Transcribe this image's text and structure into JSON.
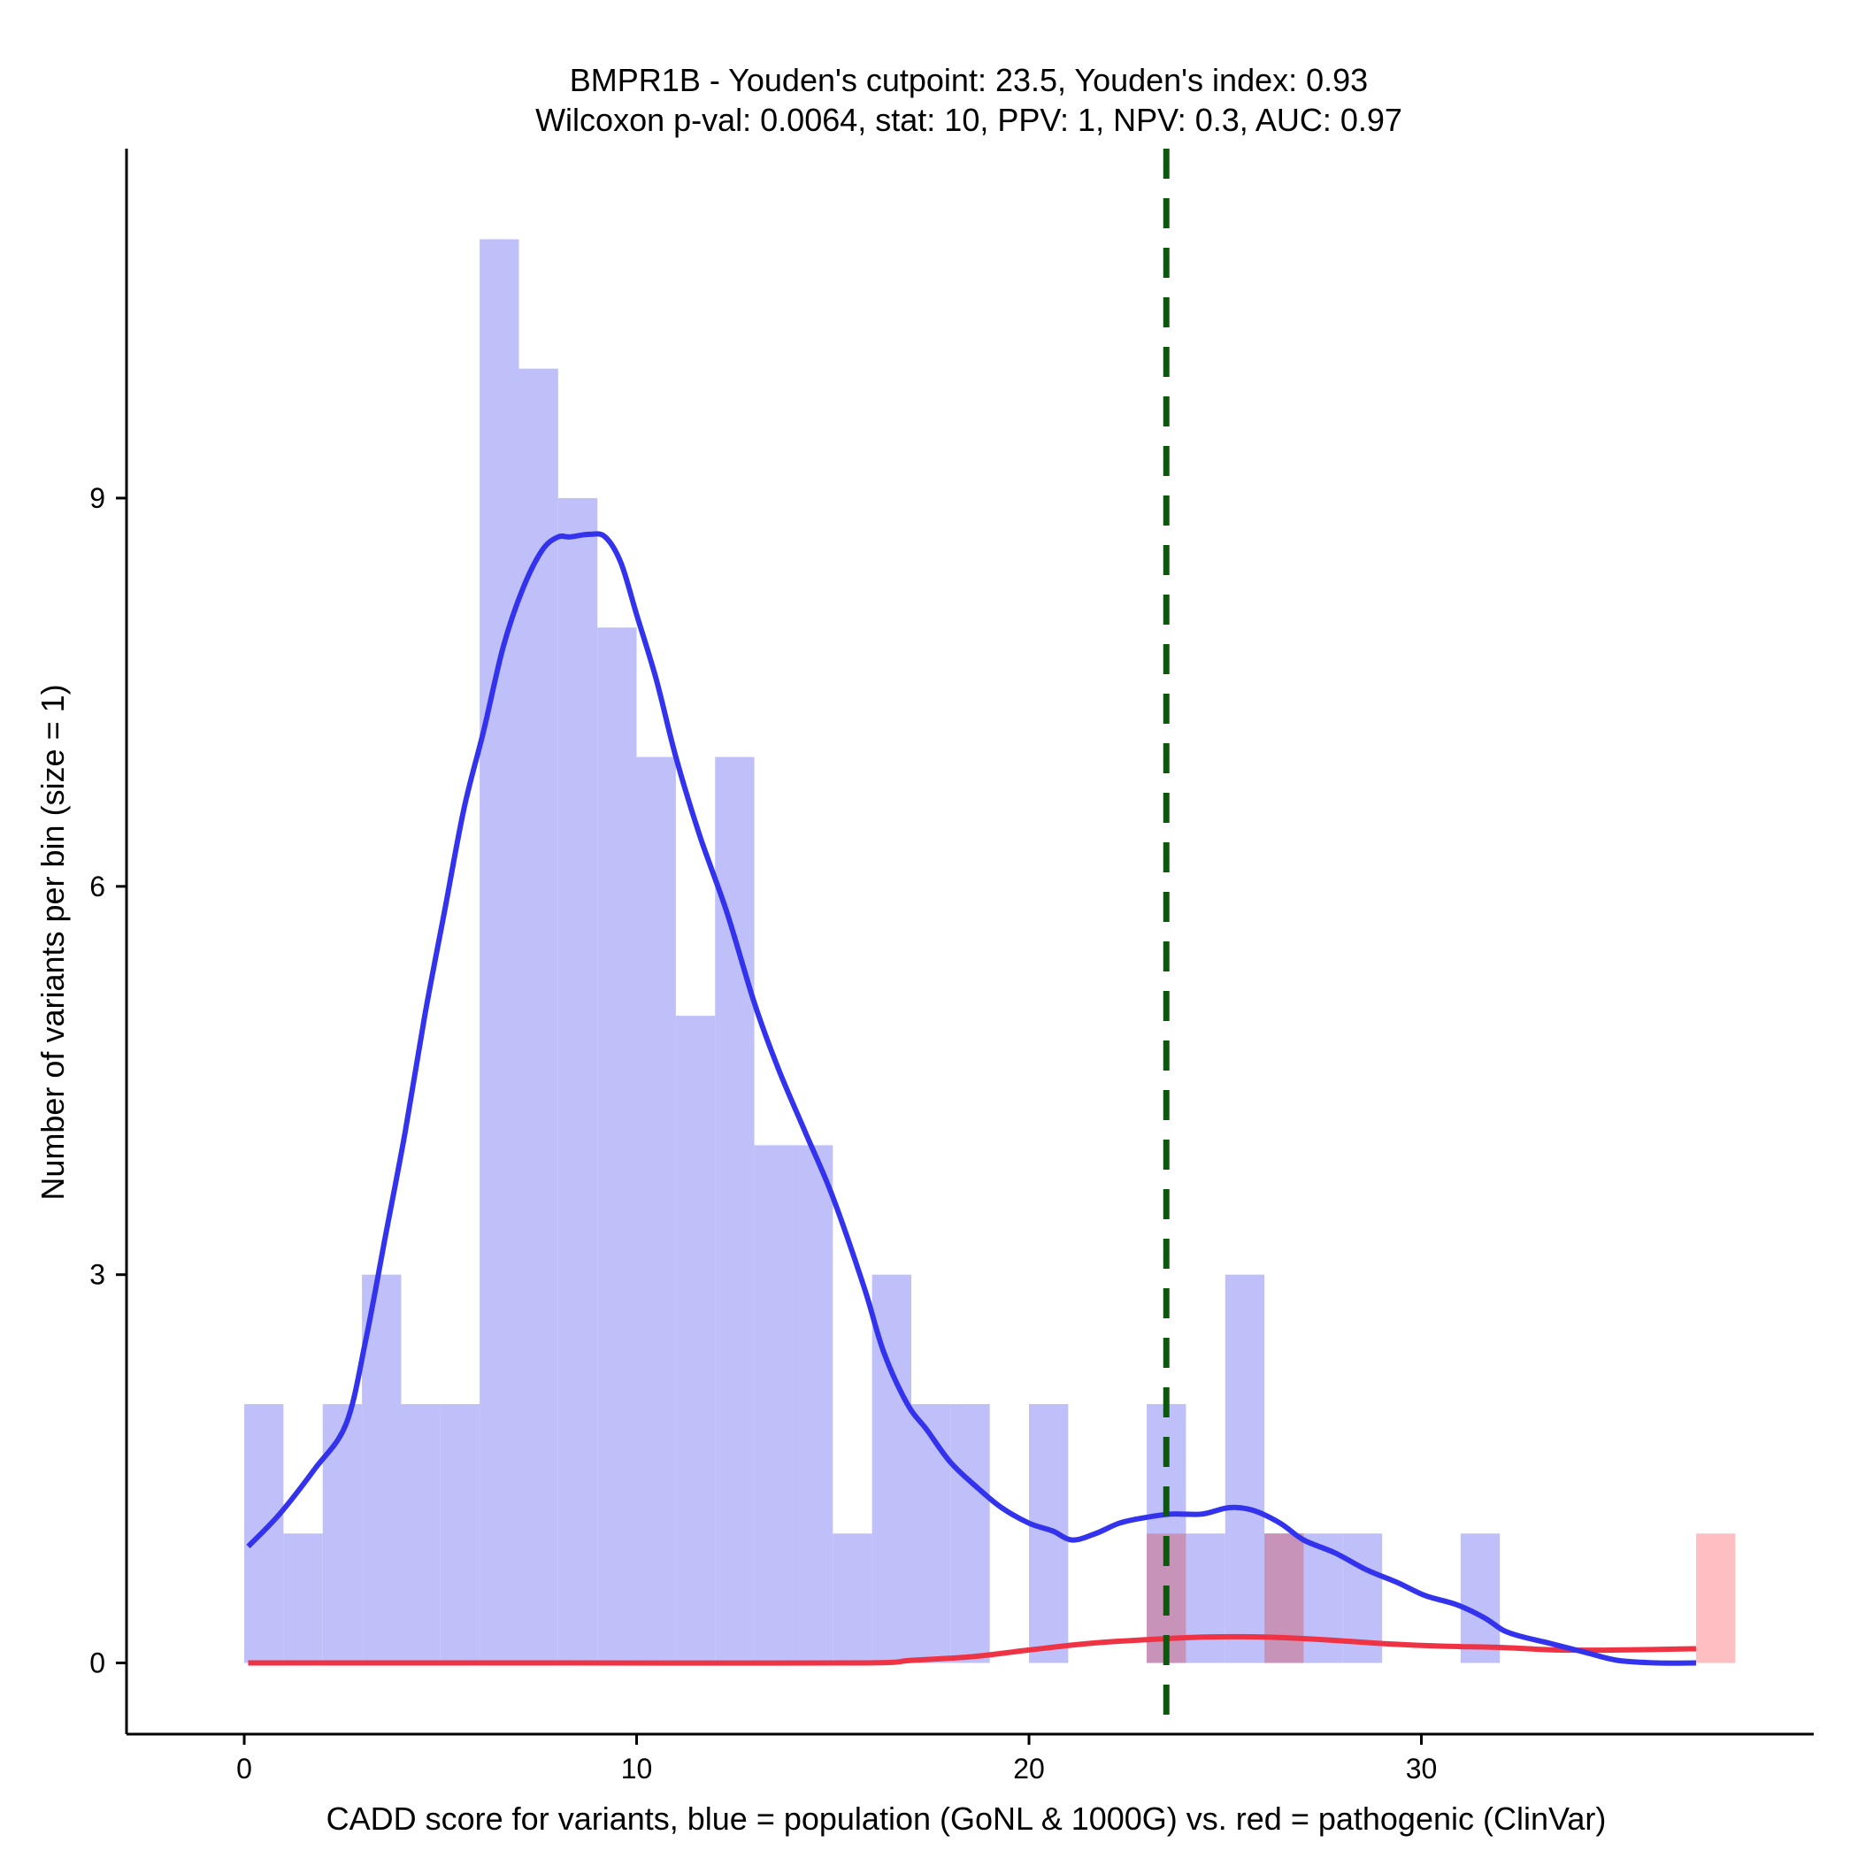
{
  "chart_data": {
    "type": "bar",
    "title": "BMPR1B - Youden's cutpoint: 23.5, Youden's index: 0.93",
    "subtitle": "Wilcoxon p-val: 0.0064, stat: 10, PPV: 1, NPV: 0.3, AUC: 0.97",
    "xlabel": "CADD score for variants, blue = population (GoNL & 1000G) vs. red = pathogenic (ClinVar)",
    "ylabel": "Number of variants per bin (size = 1)",
    "xlim": [
      -3,
      40
    ],
    "ylim": [
      -0.55,
      11.7
    ],
    "xticks": [
      0,
      10,
      20,
      30
    ],
    "yticks": [
      0,
      3,
      6,
      9
    ],
    "bin_width": 1,
    "grid": false,
    "cutpoint": 23.5,
    "colors": {
      "population_bar": "#bfbffa",
      "pathogenic_bar": "#febfc2",
      "overlap_bar": "#c893b9",
      "population_density": "#3333ee",
      "pathogenic_density": "#ee3344",
      "cutpoint_line": "#0b5a0b"
    },
    "series": [
      {
        "name": "population (GoNL & 1000G)",
        "kind": "histogram",
        "bins": [
          [
            0,
            2
          ],
          [
            1,
            1
          ],
          [
            2,
            2
          ],
          [
            3,
            3
          ],
          [
            4,
            2
          ],
          [
            5,
            2
          ],
          [
            6,
            11
          ],
          [
            7,
            10
          ],
          [
            8,
            9
          ],
          [
            9,
            8
          ],
          [
            10,
            7
          ],
          [
            11,
            5
          ],
          [
            12,
            7
          ],
          [
            13,
            4
          ],
          [
            14,
            4
          ],
          [
            15,
            1
          ],
          [
            16,
            3
          ],
          [
            17,
            2
          ],
          [
            18,
            2
          ],
          [
            20,
            2
          ],
          [
            23,
            2
          ],
          [
            24,
            1
          ],
          [
            25,
            3
          ],
          [
            26,
            1
          ],
          [
            27,
            1
          ],
          [
            28,
            1
          ],
          [
            31,
            1
          ]
        ]
      },
      {
        "name": "pathogenic (ClinVar)",
        "kind": "histogram",
        "bins": [
          [
            23,
            1
          ],
          [
            26,
            1
          ],
          [
            37,
            1
          ]
        ]
      },
      {
        "name": "population density",
        "kind": "line",
        "points": [
          [
            0.1,
            0.9
          ],
          [
            0.9,
            1.15
          ],
          [
            1.8,
            1.5
          ],
          [
            2.6,
            1.85
          ],
          [
            3.1,
            2.5
          ],
          [
            3.6,
            3.3
          ],
          [
            4.1,
            4.1
          ],
          [
            4.6,
            5.0
          ],
          [
            5.1,
            5.8
          ],
          [
            5.6,
            6.6
          ],
          [
            6.1,
            7.2
          ],
          [
            6.6,
            7.85
          ],
          [
            7.1,
            8.3
          ],
          [
            7.6,
            8.6
          ],
          [
            8.0,
            8.7
          ],
          [
            8.3,
            8.7
          ],
          [
            8.8,
            8.72
          ],
          [
            9.2,
            8.7
          ],
          [
            9.6,
            8.5
          ],
          [
            10.0,
            8.1
          ],
          [
            10.5,
            7.6
          ],
          [
            11.0,
            7.0
          ],
          [
            11.6,
            6.4
          ],
          [
            12.3,
            5.8
          ],
          [
            13.0,
            5.1
          ],
          [
            13.6,
            4.6
          ],
          [
            14.3,
            4.1
          ],
          [
            15.0,
            3.6
          ],
          [
            15.8,
            2.9
          ],
          [
            16.3,
            2.4
          ],
          [
            16.9,
            2.0
          ],
          [
            17.4,
            1.8
          ],
          [
            18.0,
            1.55
          ],
          [
            18.7,
            1.35
          ],
          [
            19.3,
            1.2
          ],
          [
            20.0,
            1.08
          ],
          [
            20.6,
            1.02
          ],
          [
            21.1,
            0.95
          ],
          [
            21.7,
            1.0
          ],
          [
            22.3,
            1.08
          ],
          [
            22.9,
            1.12
          ],
          [
            23.6,
            1.15
          ],
          [
            24.4,
            1.15
          ],
          [
            25.1,
            1.2
          ],
          [
            25.7,
            1.18
          ],
          [
            26.4,
            1.08
          ],
          [
            27.0,
            0.95
          ],
          [
            27.8,
            0.85
          ],
          [
            28.6,
            0.72
          ],
          [
            29.4,
            0.62
          ],
          [
            30.1,
            0.52
          ],
          [
            30.9,
            0.45
          ],
          [
            31.6,
            0.35
          ],
          [
            32.1,
            0.25
          ],
          [
            32.6,
            0.2
          ],
          [
            33.3,
            0.15
          ],
          [
            34.2,
            0.08
          ],
          [
            35.0,
            0.02
          ],
          [
            36.0,
            0.0
          ],
          [
            37.0,
            0.0
          ]
        ]
      },
      {
        "name": "pathogenic density",
        "kind": "line",
        "points": [
          [
            0.1,
            0.0
          ],
          [
            8.0,
            0.0
          ],
          [
            15.6,
            0.0
          ],
          [
            17.0,
            0.02
          ],
          [
            18.6,
            0.05
          ],
          [
            20.0,
            0.1
          ],
          [
            21.5,
            0.15
          ],
          [
            23.0,
            0.18
          ],
          [
            24.5,
            0.2
          ],
          [
            26.0,
            0.2
          ],
          [
            27.5,
            0.18
          ],
          [
            29.0,
            0.15
          ],
          [
            30.5,
            0.13
          ],
          [
            32.0,
            0.12
          ],
          [
            33.5,
            0.1
          ],
          [
            35.0,
            0.1
          ],
          [
            37.0,
            0.11
          ]
        ]
      }
    ]
  }
}
